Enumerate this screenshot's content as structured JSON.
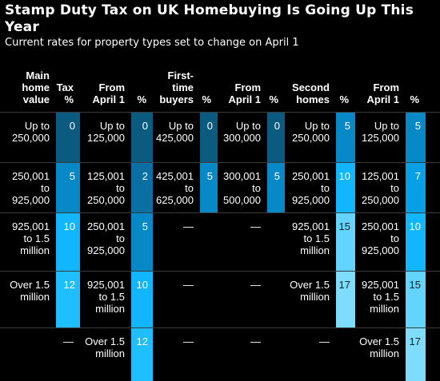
{
  "title": "Stamp Duty Tax on UK Homebuying Is Going Up This Year",
  "subtitle": "Current rates for property types set to change on April 1",
  "chart_data": {
    "type": "table",
    "columns": [
      {
        "key": "main_value",
        "label": "Main\nhome\nvalue",
        "kind": "text"
      },
      {
        "key": "main_tax",
        "label": "Tax\n%",
        "kind": "pct"
      },
      {
        "key": "main_from",
        "label": "From\nApril 1",
        "kind": "text"
      },
      {
        "key": "main_from_pct",
        "label": "%",
        "kind": "pct"
      },
      {
        "key": "ftb_value",
        "label": "First-\ntime\nbuyers",
        "kind": "text"
      },
      {
        "key": "ftb_tax",
        "label": "%",
        "kind": "pct"
      },
      {
        "key": "ftb_from",
        "label": "From\nApril 1",
        "kind": "text"
      },
      {
        "key": "ftb_from_pct",
        "label": "%",
        "kind": "pct"
      },
      {
        "key": "second_value",
        "label": "Second\nhomes",
        "kind": "text"
      },
      {
        "key": "second_tax",
        "label": "%",
        "kind": "pct"
      },
      {
        "key": "second_from",
        "label": "From\nApril 1",
        "kind": "text"
      },
      {
        "key": "second_from_pct",
        "label": "%",
        "kind": "pct"
      }
    ],
    "rows": [
      [
        "Up to\n250,000",
        "0",
        "Up to\n125,000",
        "0",
        "Up to\n425,000",
        "0",
        "Up to\n300,000",
        "0",
        "Up to\n250,000",
        "5",
        "Up to\n125,000",
        "5"
      ],
      [
        "250,001\nto\n925,000",
        "5",
        "125,001\nto\n250,000",
        "2",
        "425,001\nto\n625,000",
        "5",
        "300,001\nto\n500,000",
        "5",
        "250,001\nto\n925,000",
        "10",
        "125,001\nto\n250,000",
        "7"
      ],
      [
        "925,001\nto 1.5\nmillion",
        "10",
        "250,001\nto\n925,000",
        "5",
        "—",
        "",
        "—",
        "",
        "925,001\nto 1.5\nmillion",
        "15",
        "250,001\nto\n925,000",
        "10"
      ],
      [
        "Over 1.5\nmillion",
        "12",
        "925,001\nto 1.5\nmillion",
        "10",
        "—",
        "",
        "—",
        "",
        "Over 1.5\nmillion",
        "17",
        "925,001\nto 1.5\nmillion",
        "15"
      ],
      [
        "",
        "—",
        "Over 1.5\nmillion",
        "12",
        "—",
        "",
        "—",
        "",
        "—",
        "",
        "Over 1.5\nmillion",
        "17"
      ]
    ],
    "color_scale": [
      {
        "max": 0,
        "color": "#0b5a80"
      },
      {
        "max": 2,
        "color": "#0a70a3"
      },
      {
        "max": 5,
        "color": "#0789c7"
      },
      {
        "max": 7,
        "color": "#07a0e6"
      },
      {
        "max": 10,
        "color": "#11b6ff"
      },
      {
        "max": 12,
        "color": "#1fbfff"
      },
      {
        "max": 15,
        "color": "#63d4ff"
      },
      {
        "max": 17,
        "color": "#7edcff"
      }
    ]
  }
}
